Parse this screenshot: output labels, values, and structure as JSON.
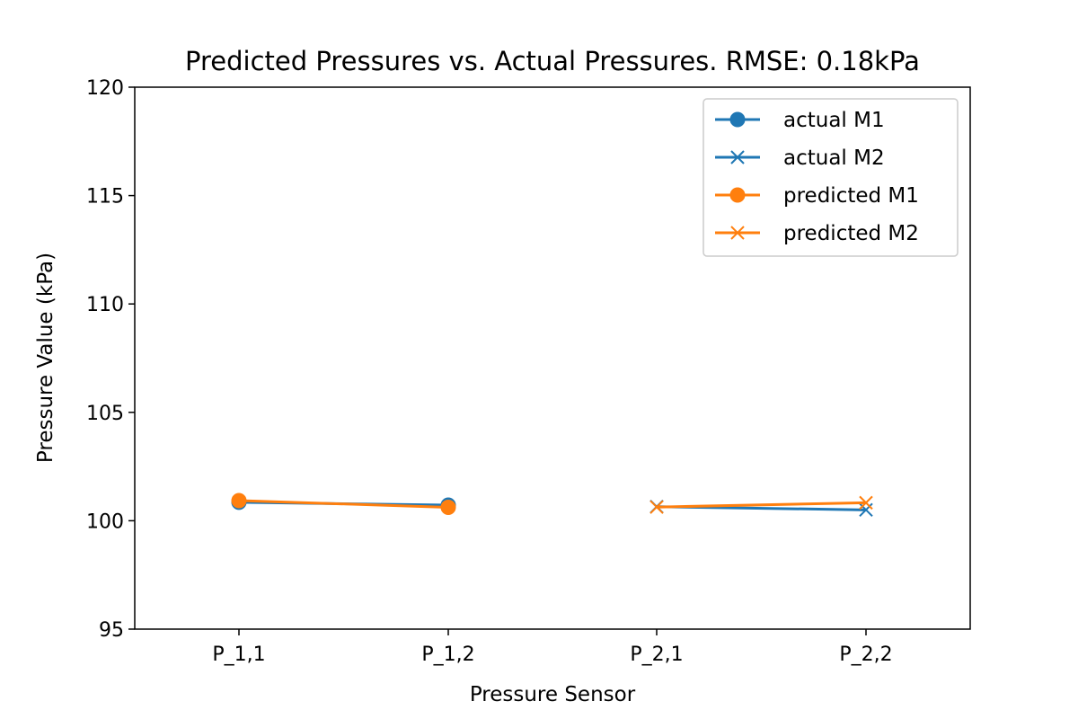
{
  "chart_data": {
    "type": "line",
    "title": "Predicted Pressures vs. Actual Pressures. RMSE: 0.18kPa",
    "xlabel": "Pressure Sensor",
    "ylabel": "Pressure Value (kPa)",
    "categories": [
      "P_1,1",
      "P_1,2",
      "P_2,1",
      "P_2,2"
    ],
    "ylim": [
      95,
      120
    ],
    "yticks": [
      95,
      100,
      105,
      110,
      115,
      120
    ],
    "grid": false,
    "legend_position": "top-right",
    "colors": {
      "actual": "#1f77b4",
      "predicted": "#ff7f0e"
    },
    "series": [
      {
        "name": "actual M1",
        "marker": "circle",
        "color": "#1f77b4",
        "points": [
          {
            "category": "P_1,1",
            "y": 100.85
          },
          {
            "category": "P_1,2",
            "y": 100.72
          }
        ]
      },
      {
        "name": "actual M2",
        "marker": "x",
        "color": "#1f77b4",
        "points": [
          {
            "category": "P_2,1",
            "y": 100.65
          },
          {
            "category": "P_2,2",
            "y": 100.5
          }
        ]
      },
      {
        "name": "predicted M1",
        "marker": "circle",
        "color": "#ff7f0e",
        "points": [
          {
            "category": "P_1,1",
            "y": 100.93
          },
          {
            "category": "P_1,2",
            "y": 100.62
          }
        ]
      },
      {
        "name": "predicted M2",
        "marker": "x",
        "color": "#ff7f0e",
        "points": [
          {
            "category": "P_2,1",
            "y": 100.63
          },
          {
            "category": "P_2,2",
            "y": 100.83
          }
        ]
      }
    ]
  }
}
